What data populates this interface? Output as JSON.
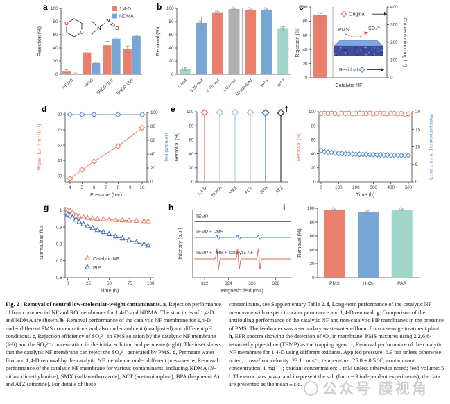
{
  "figure": {
    "watermark": {
      "text": "公众号 膜视角",
      "color": "#7d8287"
    }
  },
  "caption": {
    "left": [
      {
        "t": "Fig. 2 | Removal of neutral low-molecular-weight contaminants. ",
        "b": true
      },
      {
        "t": "a",
        "b": true
      },
      {
        "t": ", Rejection performance of four commercial NF and RO membranes for 1,4-D and NDMA. The structures of 1,4-D and NDMA are shown. "
      },
      {
        "t": "b",
        "b": true
      },
      {
        "t": ", Removal performance of the catalytic NF membrane for 1,4-D under different PMS concentrations and also under ambient (unadjusted) and different pH conditions. "
      },
      {
        "t": "c",
        "b": true
      },
      {
        "t": ", Rejection efficiency of SO₄²⁻ in PMS solution by the catalytic NF membrane (left) and the SO₄²⁻ concentration in the initial solution and permeate (right). The inset shows that the catalytic NF membrane can reject the SO₄²⁻ generated by PMS. "
      },
      {
        "t": "d",
        "b": true
      },
      {
        "t": ", Permeate water flux and 1,4-D removal by the catalytic NF membrane under different pressures. "
      },
      {
        "t": "e",
        "b": true
      },
      {
        "t": ", Removal performance of the catalytic NF membrane for various contaminants, including NDMA ("
      },
      {
        "t": "N",
        "i": true
      },
      {
        "t": "-nitrosodimethylamine), SMX (sulfamethoxazole), ACT (acetaminophen), BPA (bisphenol A) and ATZ (atrazine). For details of these"
      }
    ],
    "right": [
      {
        "t": "contaminants, see Supplementary Table 2. "
      },
      {
        "t": "f",
        "b": true
      },
      {
        "t": ", Long-term performance of the catalytic NF membrane with respect to water permeance and 1,4-D removal. "
      },
      {
        "t": "g",
        "b": true
      },
      {
        "t": ", Comparison of the antifouling performance of the catalytic NF and non-catalytic PIP membranes in the presence of PMS. The feedwater was a secondary wastewater effluent from a sewage treatment plant. "
      },
      {
        "t": "h",
        "b": true
      },
      {
        "t": ", EPR spectra showing the detection of ¹O₂ in membrane–PMS mixtures using 2,2,6,6-tetramethylpiperidine (TEMP) as the trapping agent. "
      },
      {
        "t": "i",
        "b": true
      },
      {
        "t": ", Removal performance of the catalytic NF membrane for 1,4-D using different oxidants. Applied pressure: 6.9 bar unless otherwise noted; cross-flow velocity: 23.1 cm s⁻¹; temperature: 25.0 ± 0.5 °C; contaminant concentration: 1 mg l⁻¹; oxidant concentration: 1 mM unless otherwise noted; feed volume: 5 l. The error bars in "
      },
      {
        "t": "a",
        "b": true
      },
      {
        "t": "–"
      },
      {
        "t": "c",
        "b": true
      },
      {
        "t": " and "
      },
      {
        "t": "i",
        "b": true
      },
      {
        "t": " represent the s.d. (for "
      },
      {
        "t": "n",
        "i": true
      },
      {
        "t": " = 3 independent experiments); the data are presented as the mean ± s.d."
      }
    ]
  },
  "chart_data": [
    {
      "panel": "a",
      "type": "bar",
      "ylabel": "Rejection (%)",
      "ylim": [
        0,
        100
      ],
      "yticks": [
        0,
        20,
        40,
        60,
        80,
        100
      ],
      "categories": [
        "NF270",
        "NF90",
        "SW30 ULE",
        "BW30 XRF"
      ],
      "series": [
        {
          "name": "1,4-D",
          "color": "#E8806D",
          "values": [
            4,
            33,
            44,
            38
          ],
          "errors": [
            3,
            5,
            6,
            5
          ]
        },
        {
          "name": "NDMA",
          "color": "#78A7D5",
          "values": [
            1,
            17,
            54,
            58
          ],
          "errors": [
            1,
            1,
            2,
            1
          ]
        }
      ],
      "legend_position": "top-right",
      "inset": "structures of 1,4-dioxane and NDMA"
    },
    {
      "panel": "b",
      "type": "bar",
      "ylabel": "Removal (%)",
      "ylim": [
        0,
        100
      ],
      "yticks": [
        0,
        20,
        40,
        60,
        80,
        100
      ],
      "categories": [
        "0 mM",
        "0.50 mM",
        "0.75 mM",
        "1.00 mM",
        "Unadjusted",
        "pH 5",
        "pH 7"
      ],
      "values": [
        8,
        78,
        93,
        99,
        98,
        98,
        69
      ],
      "errors": [
        2,
        9,
        2,
        1,
        1,
        1,
        3
      ],
      "colors": [
        "#A3D6CB",
        "#78A7D5",
        "#E8806D",
        "#AFAFAF",
        "#E8806D",
        "#78A7D5",
        "#A3D6CB"
      ],
      "divider_after_index": 3
    },
    {
      "panel": "c",
      "type": "bar+markers",
      "ylabel_left": "Rejection (%)",
      "ylim_left": [
        0,
        100
      ],
      "yticks_left": [
        0,
        20,
        40,
        60,
        80,
        100
      ],
      "ylabel_right": "Concentration (mg l⁻¹)",
      "ylim_right": [
        0,
        400
      ],
      "yticks_right": [
        0,
        100,
        200,
        300,
        400
      ],
      "xlabel": "Catalytic NF",
      "bar": {
        "label": "Catalytic NF",
        "value": 89,
        "error": 2,
        "color": "#E8806D"
      },
      "markers": [
        {
          "label": "Original",
          "concentration_mg_l": 360,
          "color": "#E8806D"
        },
        {
          "label": "Residual",
          "concentration_mg_l": 45,
          "color": "#5C8FCB"
        }
      ],
      "inset": {
        "pms_label": "PMS",
        "so4_label": "SO₄²⁻"
      }
    },
    {
      "panel": "d",
      "type": "line",
      "xlabel": "Pressure (bar)",
      "xticks": [
        4,
        5,
        6,
        7,
        8,
        9,
        10
      ],
      "ylabel_left": "Water flux (l m⁻² h⁻¹)",
      "ylim_left": [
        24,
        92
      ],
      "yticks_left": [
        30,
        45,
        60,
        75,
        90
      ],
      "ylabel_right": "Removal (%)",
      "ylim_right": [
        0,
        100
      ],
      "yticks_right": [
        0,
        20,
        40,
        60,
        80,
        100
      ],
      "x": [
        4,
        5,
        6,
        8,
        10
      ],
      "water_flux": [
        27,
        36,
        44,
        59,
        77
      ],
      "removal": [
        97,
        97,
        97,
        97,
        97
      ],
      "colors": {
        "water_flux": "#E8806D",
        "removal": "#5C8FCB"
      }
    },
    {
      "panel": "e",
      "type": "stem",
      "ylabel": "Removal (%)",
      "ylim": [
        0,
        100
      ],
      "yticks": [
        0,
        20,
        40,
        60,
        80,
        100
      ],
      "categories": [
        "1,4-D",
        "NDMA",
        "SMX",
        "ACT",
        "BPA",
        "ATZ"
      ],
      "values": [
        99,
        99,
        99,
        99,
        98.5,
        98.5
      ],
      "colors": [
        "#E4736A",
        "#9CD0C5",
        "#A9CBE8",
        "#B9BADB",
        "#3F6FC4",
        "#3A3A3A"
      ]
    },
    {
      "panel": "f",
      "type": "line",
      "xlabel": "Time (h)",
      "xticks": [
        0,
        100,
        200,
        300,
        400,
        500
      ],
      "x_step_h": 20,
      "ylabel_left": "Removal (%)",
      "ylim_left": [
        0,
        100
      ],
      "yticks_left": [
        0,
        20,
        40,
        60,
        80,
        100
      ],
      "ylabel_right": "Water permeance (l m⁻² h⁻¹ bar⁻¹)",
      "ylim_right": [
        0,
        20
      ],
      "yticks_right": [
        0,
        5,
        10,
        15,
        20
      ],
      "removal": [
        97.5,
        98,
        97.5,
        98,
        97.5,
        97,
        98,
        97.5,
        98,
        97,
        97.5,
        98,
        97.5,
        97.5,
        98,
        97,
        97.5,
        98,
        97.5,
        97,
        98,
        97.5,
        97,
        97.5,
        96.5,
        97
      ],
      "permeance": [
        8.9,
        8.55,
        8.45,
        8.35,
        8.25,
        8.15,
        8.1,
        8.0,
        7.95,
        7.9,
        7.85,
        7.85,
        7.8,
        7.8,
        7.75,
        7.75,
        7.7,
        7.7,
        7.65,
        7.65,
        7.6,
        7.6,
        7.6,
        7.55,
        7.6,
        7.55
      ],
      "colors": {
        "removal": "#E8806D",
        "permeance": "#5C8FCB"
      }
    },
    {
      "panel": "g",
      "type": "line",
      "xlabel": "Time (h)",
      "xticks": [
        0,
        25,
        50,
        75,
        100
      ],
      "ylabel": "Normalized flux",
      "ylim": [
        0.6,
        1.02
      ],
      "yticks": [
        0.6,
        0.7,
        0.8,
        0.9,
        1.0
      ],
      "series": [
        {
          "name": "Catalytic NF",
          "color": "#E8806D",
          "marker": "triangle",
          "x": [
            0,
            3,
            6,
            10,
            14,
            19,
            24,
            30,
            36,
            43,
            50,
            58,
            66,
            74,
            83,
            92,
            97
          ],
          "y": [
            1.0,
            0.995,
            0.985,
            0.97,
            0.963,
            0.958,
            0.954,
            0.951,
            0.949,
            0.947,
            0.944,
            0.942,
            0.94,
            0.939,
            0.937,
            0.935,
            0.934
          ]
        },
        {
          "name": "PIP",
          "color": "#3F6FC4",
          "marker": "triangle",
          "x": [
            0,
            3,
            6,
            10,
            14,
            19,
            24,
            30,
            36,
            43,
            50,
            58,
            66,
            74,
            83,
            92,
            97
          ],
          "y": [
            0.975,
            0.967,
            0.957,
            0.944,
            0.93,
            0.917,
            0.905,
            0.894,
            0.882,
            0.87,
            0.858,
            0.845,
            0.833,
            0.821,
            0.81,
            0.798,
            0.791
          ]
        }
      ]
    },
    {
      "panel": "h",
      "type": "epr",
      "xlabel": "Magnetic field (mT)",
      "xlim": [
        321,
        329.3
      ],
      "xticks": [
        322,
        324,
        326,
        328
      ],
      "ylabel": "Intensity (a.u.)",
      "peak_centers_mT": [
        323.1,
        324.85,
        326.6
      ],
      "traces": [
        {
          "label": "TEMP",
          "color": "#3A3A3A",
          "relative_amplitude": 0
        },
        {
          "label": "TEMP + PMS",
          "color": "#4A7CC7",
          "relative_amplitude": 0.2
        },
        {
          "label": "TEMP + PMS + Catalytic NF",
          "color": "#E06A5A",
          "relative_amplitude": 1.0
        }
      ]
    },
    {
      "panel": "i",
      "type": "bar",
      "ylabel": "Removal (%)",
      "ylim": [
        0,
        100
      ],
      "yticks": [
        0,
        20,
        40,
        60,
        80,
        100
      ],
      "categories": [
        "PMS",
        "H₂O₂",
        "PAA"
      ],
      "values": [
        98,
        95,
        98
      ],
      "errors": [
        1,
        2,
        1
      ],
      "colors": [
        "#E8806D",
        "#78A7D5",
        "#A3D6CB"
      ]
    }
  ]
}
